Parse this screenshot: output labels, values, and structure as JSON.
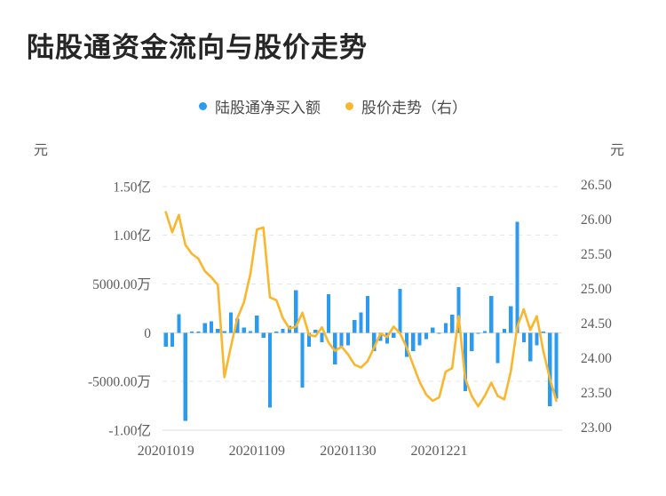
{
  "title": "陆股通资金流向与股价走势",
  "legend": {
    "items": [
      {
        "label": "陆股通净买入额",
        "color": "#2b9bf0"
      },
      {
        "label": "股价走势（右）",
        "color": "#fab62c"
      }
    ]
  },
  "chart_data": {
    "type": "bar+line",
    "n_points": 61,
    "title": "陆股通资金流向与股价走势",
    "grid": {
      "gridlines": "horizontal dashed",
      "zero_line": true,
      "legend_position": "top-center"
    },
    "x_axis": {
      "tick_labels": [
        "20201019",
        "20201109",
        "20201130",
        "20201221"
      ],
      "tick_indices": [
        0,
        14,
        28,
        42
      ]
    },
    "left_axis": {
      "unit": "元",
      "tick_labels": [
        "1.50亿",
        "1.00亿",
        "5000.00万",
        "0",
        "-5000.00万",
        "-1.00亿"
      ],
      "tick_values_wan": [
        15000,
        10000,
        5000,
        0,
        -5000,
        -10000
      ],
      "range_wan": [
        -11000,
        16000
      ]
    },
    "right_axis": {
      "unit": "元",
      "tick_labels": [
        "26.50",
        "26.00",
        "25.50",
        "25.00",
        "24.50",
        "24.00",
        "23.50",
        "23.00"
      ],
      "max": 26.5,
      "min": 23.0,
      "step": 0.5
    },
    "series": [
      {
        "name": "陆股通净买入额",
        "type": "bar",
        "axis": "left",
        "unit": "万元",
        "color": "#2b9bf0",
        "values": [
          -1430,
          -1430,
          1920,
          -9050,
          50,
          100,
          1000,
          1160,
          400,
          150,
          2070,
          1460,
          550,
          150,
          1770,
          -520,
          -7690,
          100,
          400,
          700,
          4360,
          -5610,
          -1430,
          300,
          -980,
          3960,
          -3260,
          -1430,
          -1280,
          1310,
          2070,
          3750,
          -1890,
          -820,
          -1130,
          -520,
          4510,
          -2500,
          -1890,
          -1280,
          -670,
          550,
          -100,
          1000,
          1830,
          4670,
          -6010,
          -1890,
          -100,
          150,
          3750,
          -3110,
          400,
          2740,
          11380,
          -980,
          -2960,
          -1280,
          100,
          -7540,
          -6770
        ]
      },
      {
        "name": "股价走势（右）",
        "type": "line",
        "axis": "right",
        "unit": "元",
        "color": "#fab62c",
        "values": [
          26.1,
          25.81,
          26.06,
          25.63,
          25.5,
          25.43,
          25.25,
          25.16,
          25.05,
          23.72,
          24.16,
          24.57,
          24.8,
          25.21,
          25.85,
          25.88,
          24.87,
          24.83,
          24.57,
          24.42,
          24.45,
          24.65,
          24.33,
          24.31,
          24.44,
          24.22,
          24.1,
          24.16,
          24.05,
          23.9,
          23.86,
          23.95,
          24.15,
          24.35,
          24.3,
          24.45,
          24.35,
          24.15,
          23.9,
          23.65,
          23.47,
          23.38,
          23.43,
          23.8,
          23.85,
          24.6,
          23.7,
          23.45,
          23.3,
          23.45,
          23.64,
          23.45,
          23.4,
          23.8,
          24.45,
          24.7,
          24.4,
          24.6,
          24.1,
          23.7,
          23.38
        ]
      }
    ]
  }
}
